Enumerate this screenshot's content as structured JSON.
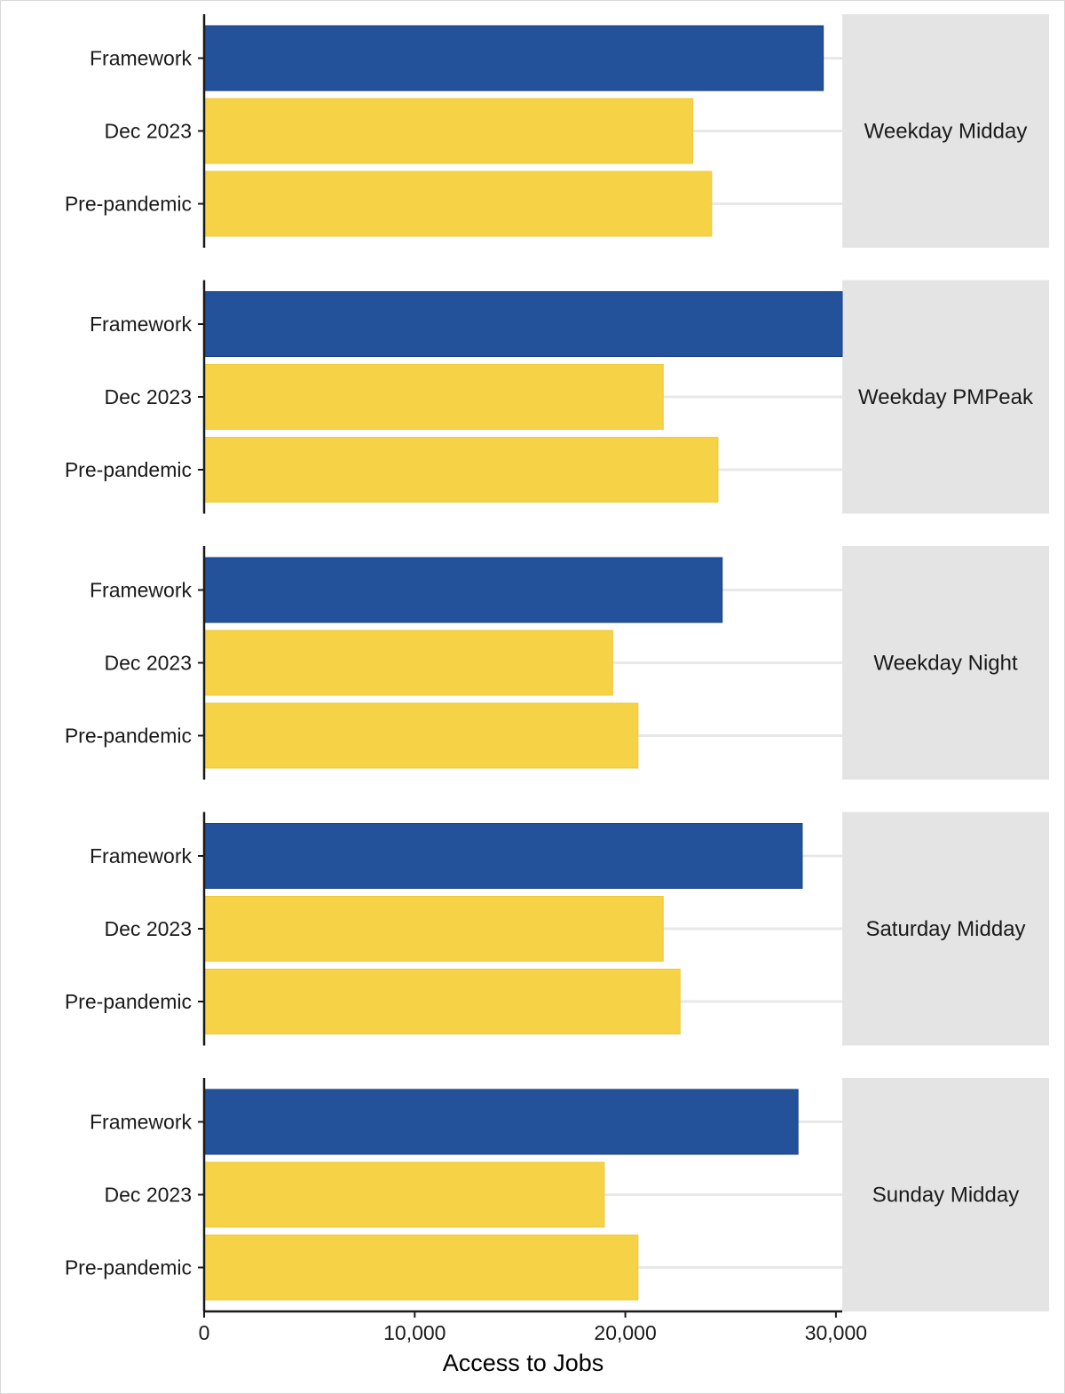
{
  "chart_data": {
    "type": "bar",
    "orientation": "horizontal",
    "categories": [
      "Framework",
      "Dec 2023",
      "Pre-pandemic"
    ],
    "xlabel": "Access to Jobs",
    "ylabel": "",
    "xlim": [
      0,
      30300
    ],
    "x_ticks": [
      {
        "value": 0,
        "label": "0"
      },
      {
        "value": 10000,
        "label": "10,000"
      },
      {
        "value": 20000,
        "label": "20,000"
      },
      {
        "value": 30000,
        "label": "30,000"
      }
    ],
    "grid": "horizontal-only",
    "legend": "none",
    "colors": {
      "Framework": "#23529A",
      "Dec 2023": "#F5D246",
      "Pre-pandemic": "#F5D246",
      "strip_background": "#E4E4E4",
      "gridline": "#E8E8E8"
    },
    "panels": [
      {
        "label": "Weekday Midday",
        "values": [
          29400,
          23200,
          24100
        ]
      },
      {
        "label": "Weekday PMPeak",
        "values": [
          30300,
          21800,
          24400
        ]
      },
      {
        "label": "Weekday Night",
        "values": [
          24600,
          19400,
          20600
        ]
      },
      {
        "label": "Saturday Midday",
        "values": [
          28400,
          21800,
          22600
        ]
      },
      {
        "label": "Sunday Midday",
        "values": [
          28200,
          19000,
          20600
        ]
      }
    ]
  }
}
